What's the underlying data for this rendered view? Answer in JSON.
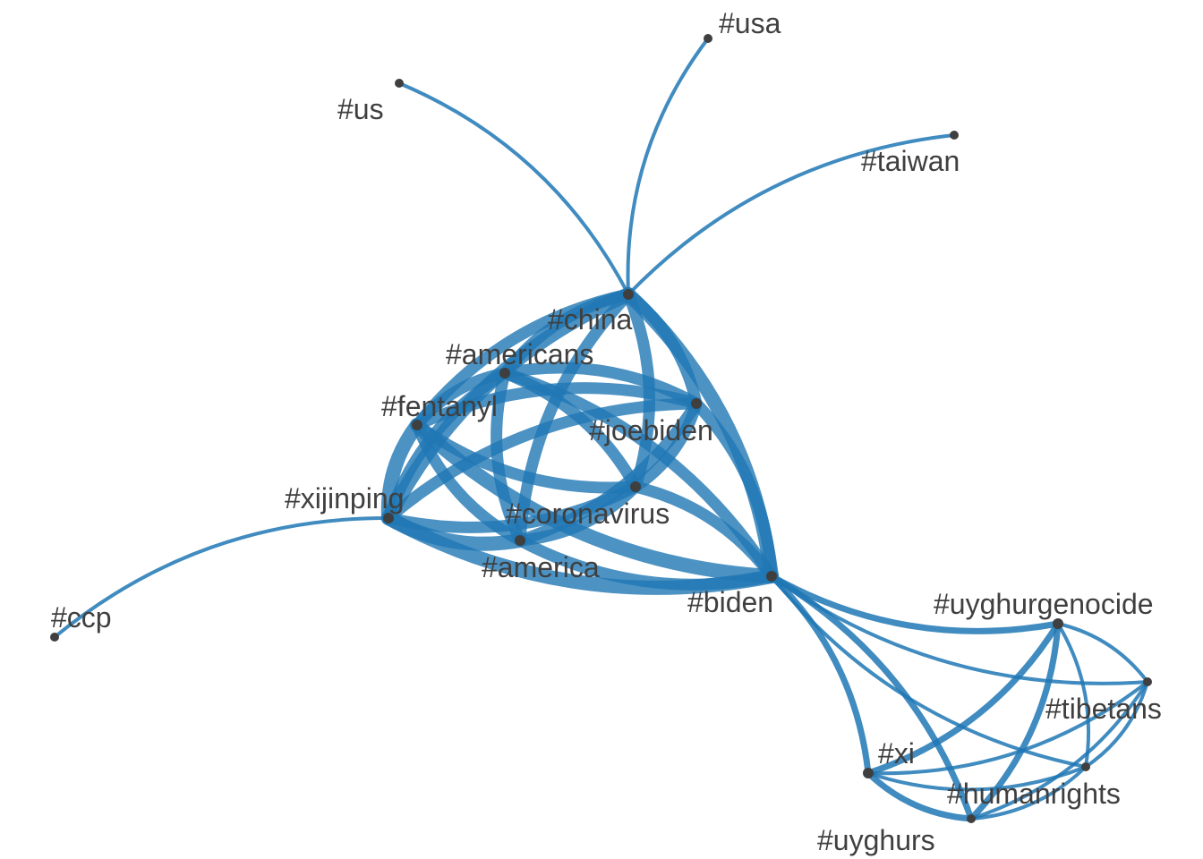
{
  "colors": {
    "edge": "#1f77b4",
    "node": "#3f3f3f",
    "label": "#3f3f3f",
    "background": "#ffffff"
  },
  "nodes": [
    {
      "id": "china",
      "label": "#china"
    },
    {
      "id": "usa",
      "label": "#usa"
    },
    {
      "id": "us",
      "label": "#us"
    },
    {
      "id": "taiwan",
      "label": "#taiwan"
    },
    {
      "id": "americans",
      "label": "#americans"
    },
    {
      "id": "fentanyl",
      "label": "#fentanyl"
    },
    {
      "id": "joebiden",
      "label": "#joebiden"
    },
    {
      "id": "xijinping",
      "label": "#xijinping"
    },
    {
      "id": "coronavirus",
      "label": "#coronavirus"
    },
    {
      "id": "america",
      "label": "#america"
    },
    {
      "id": "biden",
      "label": "#biden"
    },
    {
      "id": "ccp",
      "label": "#ccp"
    },
    {
      "id": "uyghurgenocide",
      "label": "#uyghurgenocide"
    },
    {
      "id": "tibetans",
      "label": "#tibetans"
    },
    {
      "id": "xi",
      "label": "#xi"
    },
    {
      "id": "humanrights",
      "label": "#humanrights"
    },
    {
      "id": "uyghurs",
      "label": "#uyghurs"
    }
  ],
  "edges": [
    {
      "from": "china",
      "to": "usa",
      "weight": 1
    },
    {
      "from": "china",
      "to": "us",
      "weight": 1
    },
    {
      "from": "china",
      "to": "taiwan",
      "weight": 1
    },
    {
      "from": "xijinping",
      "to": "ccp",
      "weight": 1
    },
    {
      "from": "china",
      "to": "americans",
      "weight": 4
    },
    {
      "from": "china",
      "to": "fentanyl",
      "weight": 4
    },
    {
      "from": "china",
      "to": "joebiden",
      "weight": 4
    },
    {
      "from": "china",
      "to": "xijinping",
      "weight": 5
    },
    {
      "from": "china",
      "to": "coronavirus",
      "weight": 4
    },
    {
      "from": "china",
      "to": "america",
      "weight": 4
    },
    {
      "from": "china",
      "to": "biden",
      "weight": 5
    },
    {
      "from": "americans",
      "to": "fentanyl",
      "weight": 4
    },
    {
      "from": "americans",
      "to": "joebiden",
      "weight": 4
    },
    {
      "from": "americans",
      "to": "xijinping",
      "weight": 4
    },
    {
      "from": "americans",
      "to": "coronavirus",
      "weight": 4
    },
    {
      "from": "americans",
      "to": "america",
      "weight": 4
    },
    {
      "from": "americans",
      "to": "biden",
      "weight": 4
    },
    {
      "from": "fentanyl",
      "to": "joebiden",
      "weight": 4
    },
    {
      "from": "fentanyl",
      "to": "xijinping",
      "weight": 5
    },
    {
      "from": "fentanyl",
      "to": "coronavirus",
      "weight": 4
    },
    {
      "from": "fentanyl",
      "to": "america",
      "weight": 4
    },
    {
      "from": "fentanyl",
      "to": "biden",
      "weight": 5
    },
    {
      "from": "joebiden",
      "to": "xijinping",
      "weight": 4
    },
    {
      "from": "joebiden",
      "to": "coronavirus",
      "weight": 4
    },
    {
      "from": "joebiden",
      "to": "america",
      "weight": 4
    },
    {
      "from": "joebiden",
      "to": "biden",
      "weight": 4
    },
    {
      "from": "xijinping",
      "to": "coronavirus",
      "weight": 4
    },
    {
      "from": "xijinping",
      "to": "america",
      "weight": 5
    },
    {
      "from": "xijinping",
      "to": "biden",
      "weight": 5
    },
    {
      "from": "coronavirus",
      "to": "america",
      "weight": 4
    },
    {
      "from": "coronavirus",
      "to": "biden",
      "weight": 4
    },
    {
      "from": "america",
      "to": "biden",
      "weight": 4
    },
    {
      "from": "biden",
      "to": "uyghurgenocide",
      "weight": 2
    },
    {
      "from": "biden",
      "to": "tibetans",
      "weight": 1
    },
    {
      "from": "biden",
      "to": "xi",
      "weight": 2
    },
    {
      "from": "biden",
      "to": "humanrights",
      "weight": 1
    },
    {
      "from": "biden",
      "to": "uyghurs",
      "weight": 2
    },
    {
      "from": "uyghurgenocide",
      "to": "tibetans",
      "weight": 1
    },
    {
      "from": "uyghurgenocide",
      "to": "xi",
      "weight": 2
    },
    {
      "from": "uyghurgenocide",
      "to": "humanrights",
      "weight": 1
    },
    {
      "from": "uyghurgenocide",
      "to": "uyghurs",
      "weight": 2
    },
    {
      "from": "tibetans",
      "to": "xi",
      "weight": 1
    },
    {
      "from": "tibetans",
      "to": "humanrights",
      "weight": 1
    },
    {
      "from": "tibetans",
      "to": "uyghurs",
      "weight": 1
    },
    {
      "from": "xi",
      "to": "humanrights",
      "weight": 1
    },
    {
      "from": "xi",
      "to": "uyghurs",
      "weight": 2
    },
    {
      "from": "humanrights",
      "to": "uyghurs",
      "weight": 1
    }
  ]
}
